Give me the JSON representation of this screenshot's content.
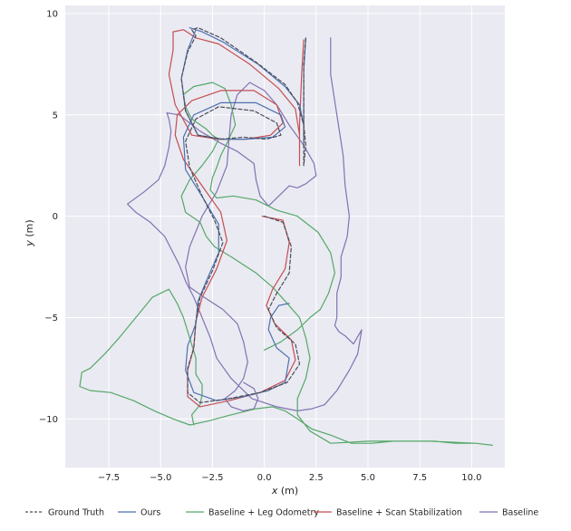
{
  "chart_data": {
    "type": "line",
    "xlabel_var": "x",
    "xlabel_unit": " (m)",
    "ylabel_var": "y",
    "ylabel_unit": " (m)",
    "xlim": [
      -9.6,
      11.6
    ],
    "ylim": [
      -12.4,
      10.4
    ],
    "xticks": [
      -7.5,
      -5.0,
      -2.5,
      0.0,
      2.5,
      5.0,
      7.5,
      10.0
    ],
    "xtick_labels": [
      "−7.5",
      "−5.0",
      "−2.5",
      "0.0",
      "2.5",
      "5.0",
      "7.5",
      "10.0"
    ],
    "yticks": [
      10,
      5,
      0,
      -5,
      -10
    ],
    "ytick_labels": [
      "10",
      "5",
      "0",
      "−5",
      "−10"
    ],
    "grid": true,
    "legend_position": "bottom",
    "series": [
      {
        "name": "Ground Truth",
        "color": "#4c4c5a",
        "dashed": true,
        "x": [
          0.0,
          0.9,
          1.3,
          1.2,
          0.6,
          0.2,
          0.6,
          1.5,
          1.7,
          1.1,
          -0.2,
          -1.7,
          -3.1,
          -3.7,
          -3.7,
          -3.4,
          -3.3,
          -3.1,
          -2.5,
          -2.0,
          -2.4,
          -3.0,
          -3.6,
          -3.8,
          -3.3,
          -2.2,
          -0.5,
          0.6,
          0.8,
          0.1,
          -1.0,
          -2.1,
          -3.2,
          -3.8,
          -4.0,
          -3.7,
          -3.3,
          -3.5,
          -3.2,
          -2.1,
          -0.4,
          1.0,
          1.6,
          1.9,
          2.0,
          1.9,
          1.9,
          1.9,
          2.0
        ],
        "y": [
          0.0,
          -0.3,
          -1.5,
          -2.8,
          -3.8,
          -4.6,
          -5.5,
          -6.3,
          -7.3,
          -8.2,
          -8.7,
          -9.0,
          -9.2,
          -8.7,
          -7.5,
          -6.5,
          -5.2,
          -4.0,
          -2.7,
          -1.3,
          -0.2,
          1.0,
          2.4,
          3.7,
          4.8,
          5.4,
          5.2,
          4.6,
          4.0,
          3.8,
          3.9,
          3.8,
          4.0,
          5.2,
          6.8,
          8.1,
          8.9,
          9.2,
          9.3,
          8.8,
          7.6,
          6.5,
          5.6,
          4.5,
          3.5,
          2.5,
          5.0,
          7.5,
          8.8
        ]
      },
      {
        "name": "Ours",
        "color": "#4c72b0",
        "dashed": false,
        "x": [
          1.2,
          0.7,
          0.3,
          0.2,
          0.6,
          1.2,
          1.0,
          0.2,
          -1.0,
          -2.3,
          -3.4,
          -3.8,
          -3.7,
          -3.3,
          -3.2,
          -2.8,
          -2.2,
          -2.2,
          -2.9,
          -3.8,
          -3.9,
          -3.4,
          -2.1,
          -0.4,
          0.8,
          1.0,
          0.4,
          -0.9,
          -2.0,
          -3.2,
          -3.8,
          -4.0,
          -3.7,
          -3.3,
          -3.6,
          -3.0,
          -2.0,
          -0.3,
          1.0,
          1.7,
          1.9,
          1.9,
          1.9,
          1.9,
          2.0
        ],
        "y": [
          -4.3,
          -4.4,
          -5.0,
          -5.6,
          -6.5,
          -7.0,
          -8.2,
          -8.6,
          -8.9,
          -9.1,
          -8.7,
          -7.6,
          -6.4,
          -5.3,
          -4.2,
          -3.2,
          -1.8,
          -0.4,
          0.8,
          2.3,
          3.9,
          5.0,
          5.6,
          5.6,
          5.0,
          4.4,
          3.9,
          3.8,
          3.8,
          4.0,
          5.2,
          6.8,
          8.2,
          9.2,
          9.3,
          9.1,
          8.6,
          7.5,
          6.4,
          5.5,
          4.5,
          3.4,
          5.0,
          7.2,
          8.8
        ]
      },
      {
        "name": "Baseline + Leg Odometry",
        "color": "#55a868",
        "dashed": false,
        "x": [
          -3.4,
          -3.5,
          -3.1,
          -3.0,
          -3.0,
          -3.3,
          -3.3,
          -3.6,
          -3.9,
          -4.2,
          -4.6,
          -5.4,
          -6.2,
          -7.0,
          -7.7,
          -8.4,
          -8.8,
          -8.9,
          -8.4,
          -7.4,
          -6.3,
          -5.3,
          -4.4,
          -3.6,
          -2.7,
          -1.6,
          -0.4,
          0.4,
          1.0,
          1.6,
          2.3,
          3.2,
          4.2,
          5.2,
          6.2,
          7.2,
          8.2,
          9.2,
          10.2,
          11.0,
          10.2,
          8.0,
          5.0,
          3.2,
          2.2,
          1.6,
          1.6,
          2.0,
          2.2,
          2.0,
          1.7,
          1.1,
          0.4,
          -0.4,
          -1.6,
          -2.4,
          -2.8,
          -3.1,
          -3.8,
          -4.0,
          -3.6,
          -3.0,
          -2.5,
          -2.2,
          -2.5,
          -2.8,
          -3.5,
          -3.8,
          -3.9,
          -3.4,
          -2.5,
          -1.9,
          -1.6,
          -1.4,
          -1.8,
          -2.1,
          -2.3,
          -2.5,
          -2.6,
          -2.3,
          -1.5,
          -0.4,
          0.6,
          1.6,
          2.6,
          3.2,
          3.4,
          3.1,
          2.7,
          2.2,
          1.6,
          0.8,
          0.0
        ],
        "y": [
          -10.3,
          -9.8,
          -9.3,
          -8.8,
          -8.3,
          -7.8,
          -7.0,
          -6.0,
          -5.0,
          -4.3,
          -3.6,
          -4.0,
          -5.0,
          -6.0,
          -6.8,
          -7.5,
          -7.7,
          -8.4,
          -8.6,
          -8.7,
          -9.1,
          -9.6,
          -10.0,
          -10.3,
          -10.1,
          -9.8,
          -9.5,
          -9.4,
          -9.6,
          -10.0,
          -10.5,
          -10.8,
          -11.2,
          -11.2,
          -11.1,
          -11.1,
          -11.1,
          -11.2,
          -11.2,
          -11.3,
          -11.2,
          -11.1,
          -11.1,
          -11.2,
          -10.6,
          -9.8,
          -9.0,
          -8.0,
          -7.0,
          -6.0,
          -5.0,
          -4.3,
          -3.5,
          -2.8,
          -2.0,
          -1.5,
          -1.0,
          -0.3,
          0.2,
          1.0,
          1.8,
          2.5,
          3.2,
          3.8,
          4.0,
          4.3,
          4.8,
          5.4,
          6.0,
          6.4,
          6.6,
          6.3,
          5.5,
          4.5,
          3.6,
          3.0,
          2.4,
          1.9,
          1.3,
          0.9,
          1.0,
          0.8,
          0.3,
          0.0,
          -0.8,
          -1.8,
          -2.8,
          -3.8,
          -4.6,
          -5.0,
          -5.6,
          -6.2,
          -6.6
        ]
      },
      {
        "name": "Baseline + Scan Stabilization",
        "color": "#c44e52",
        "dashed": false,
        "x": [
          -0.1,
          0.9,
          1.2,
          1.0,
          0.4,
          0.1,
          0.5,
          1.3,
          1.5,
          1.0,
          -0.2,
          -1.7,
          -3.1,
          -3.7,
          -3.7,
          -3.4,
          -3.3,
          -3.0,
          -2.3,
          -1.8,
          -2.1,
          -3.0,
          -3.9,
          -4.3,
          -4.2,
          -3.5,
          -2.1,
          -0.5,
          0.6,
          0.9,
          0.3,
          -0.9,
          -2.2,
          -3.5,
          -4.3,
          -4.6,
          -4.4,
          -4.4,
          -3.9,
          -3.3,
          -2.2,
          -0.7,
          0.7,
          1.5,
          1.7,
          1.7,
          1.7,
          1.8,
          1.9
        ],
        "y": [
          0.0,
          -0.2,
          -1.3,
          -2.6,
          -3.6,
          -4.4,
          -5.3,
          -6.1,
          -7.1,
          -8.1,
          -8.7,
          -9.1,
          -9.4,
          -8.9,
          -7.6,
          -6.5,
          -5.2,
          -4.0,
          -2.6,
          -1.2,
          0.2,
          1.5,
          2.8,
          4.0,
          5.0,
          5.7,
          6.2,
          6.2,
          5.5,
          4.6,
          4.0,
          3.8,
          3.8,
          4.0,
          5.5,
          7.0,
          8.2,
          9.1,
          9.2,
          8.8,
          8.5,
          7.5,
          6.3,
          5.3,
          4.0,
          2.5,
          4.5,
          7.0,
          8.7
        ]
      },
      {
        "name": "Baseline",
        "color": "#8172b2",
        "dashed": false,
        "x": [
          3.2,
          3.2,
          3.5,
          3.8,
          3.9,
          4.1,
          4.0,
          3.7,
          3.7,
          3.5,
          3.5,
          3.5,
          3.4,
          3.6,
          3.9,
          4.3,
          4.7,
          4.5,
          4.1,
          3.5,
          2.9,
          2.3,
          1.6,
          0.6,
          -0.6,
          -1.6,
          -2.3,
          -2.6,
          -3.0,
          -3.4,
          -3.8,
          -4.1,
          -4.8,
          -5.5,
          -6.2,
          -6.6,
          -5.8,
          -5.1,
          -4.8,
          -4.6,
          -4.5,
          -4.6,
          -4.7,
          -4.1,
          -3.1,
          -2.1,
          -1.3,
          -0.5,
          -0.4,
          -0.2,
          0.2,
          0.7,
          1.2,
          1.6,
          2.0,
          2.5,
          2.4,
          1.9,
          1.2,
          0.6,
          0.0,
          -0.7,
          -1.3,
          -1.6,
          -1.7,
          -1.8,
          -2.3,
          -3.0,
          -3.6,
          -3.8,
          -3.6,
          -2.9,
          -2.0,
          -1.3,
          -1.0,
          -0.8,
          -1.0,
          -1.4,
          -1.9,
          -1.6,
          -1.0,
          -0.5,
          -0.3,
          -0.5,
          -1.0
        ],
        "y": [
          8.8,
          7.0,
          5.0,
          3.0,
          1.5,
          0.0,
          -1.0,
          -2.0,
          -3.0,
          -3.8,
          -4.5,
          -5.0,
          -5.4,
          -5.7,
          -5.9,
          -6.3,
          -5.6,
          -6.8,
          -7.6,
          -8.6,
          -9.3,
          -9.5,
          -9.6,
          -9.4,
          -9.0,
          -8.0,
          -7.0,
          -6.0,
          -5.0,
          -4.0,
          -3.2,
          -2.4,
          -1.0,
          -0.3,
          0.2,
          0.6,
          1.2,
          1.8,
          2.5,
          3.4,
          4.2,
          4.8,
          5.1,
          5.0,
          4.2,
          3.6,
          3.2,
          2.6,
          1.8,
          1.0,
          0.5,
          1.0,
          1.5,
          1.4,
          1.6,
          2.0,
          2.6,
          3.5,
          4.5,
          5.5,
          6.2,
          6.6,
          6.0,
          5.0,
          3.8,
          2.5,
          1.2,
          0.0,
          -1.5,
          -2.5,
          -3.5,
          -4.0,
          -4.6,
          -5.3,
          -6.2,
          -7.2,
          -8.0,
          -8.6,
          -9.0,
          -9.4,
          -9.6,
          -9.5,
          -9.0,
          -8.5,
          -8.2
        ]
      }
    ]
  }
}
